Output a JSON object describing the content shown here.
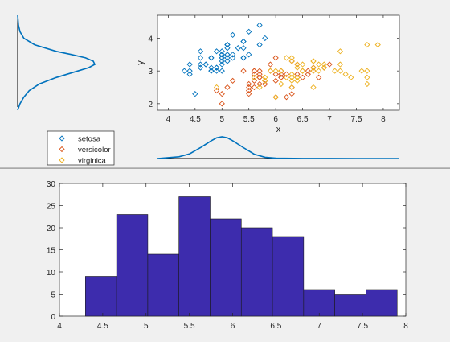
{
  "colors": {
    "setosa": "#0072bd",
    "versicolor": "#d95319",
    "virginica": "#edb120",
    "bar_fill": "#3d2cad",
    "curve": "#0072bd"
  },
  "chart_data": [
    {
      "type": "scatter",
      "xlabel": "x",
      "ylabel": "y",
      "xlim": [
        3.8,
        8.3
      ],
      "ylim": [
        1.8,
        4.7
      ],
      "xticks": [
        "4",
        "4.5",
        "5",
        "5.5",
        "6",
        "6.5",
        "7",
        "7.5",
        "8"
      ],
      "yticks": [
        "2",
        "3",
        "4"
      ],
      "legend_position": "bottom-left, outside plot",
      "marker": "open diamond",
      "series": [
        {
          "name": "setosa",
          "points": [
            [
              5.1,
              3.5
            ],
            [
              4.9,
              3.0
            ],
            [
              4.7,
              3.2
            ],
            [
              4.6,
              3.1
            ],
            [
              5.0,
              3.6
            ],
            [
              5.4,
              3.9
            ],
            [
              4.6,
              3.4
            ],
            [
              5.0,
              3.4
            ],
            [
              4.4,
              2.9
            ],
            [
              4.9,
              3.1
            ],
            [
              5.4,
              3.7
            ],
            [
              4.8,
              3.4
            ],
            [
              4.8,
              3.0
            ],
            [
              4.3,
              3.0
            ],
            [
              5.8,
              4.0
            ],
            [
              5.7,
              4.4
            ],
            [
              5.4,
              3.9
            ],
            [
              5.1,
              3.5
            ],
            [
              5.7,
              3.8
            ],
            [
              5.1,
              3.8
            ],
            [
              5.4,
              3.4
            ],
            [
              5.1,
              3.7
            ],
            [
              4.6,
              3.6
            ],
            [
              5.1,
              3.3
            ],
            [
              4.8,
              3.4
            ],
            [
              5.0,
              3.0
            ],
            [
              5.0,
              3.4
            ],
            [
              5.2,
              3.5
            ],
            [
              5.2,
              3.4
            ],
            [
              4.7,
              3.2
            ],
            [
              4.8,
              3.1
            ],
            [
              5.4,
              3.4
            ],
            [
              5.2,
              4.1
            ],
            [
              5.5,
              4.2
            ],
            [
              4.9,
              3.1
            ],
            [
              5.0,
              3.2
            ],
            [
              5.5,
              3.5
            ],
            [
              4.9,
              3.6
            ],
            [
              4.4,
              3.0
            ],
            [
              5.1,
              3.4
            ],
            [
              5.0,
              3.5
            ],
            [
              4.5,
              2.3
            ],
            [
              4.4,
              3.2
            ],
            [
              5.0,
              3.5
            ],
            [
              5.1,
              3.8
            ],
            [
              4.8,
              3.0
            ],
            [
              5.1,
              3.8
            ],
            [
              4.6,
              3.2
            ],
            [
              5.3,
              3.7
            ],
            [
              5.0,
              3.3
            ]
          ]
        },
        {
          "name": "versicolor",
          "points": [
            [
              7.0,
              3.2
            ],
            [
              6.4,
              3.2
            ],
            [
              6.9,
              3.1
            ],
            [
              5.5,
              2.3
            ],
            [
              6.5,
              2.8
            ],
            [
              5.7,
              2.8
            ],
            [
              6.3,
              3.3
            ],
            [
              4.9,
              2.4
            ],
            [
              6.6,
              2.9
            ],
            [
              5.2,
              2.7
            ],
            [
              5.0,
              2.0
            ],
            [
              5.9,
              3.0
            ],
            [
              6.0,
              2.2
            ],
            [
              6.1,
              2.9
            ],
            [
              5.6,
              2.9
            ],
            [
              6.7,
              3.1
            ],
            [
              5.6,
              3.0
            ],
            [
              5.8,
              2.7
            ],
            [
              6.2,
              2.2
            ],
            [
              5.6,
              2.5
            ],
            [
              5.9,
              3.2
            ],
            [
              6.1,
              2.8
            ],
            [
              6.3,
              2.5
            ],
            [
              6.1,
              2.8
            ],
            [
              6.4,
              2.9
            ],
            [
              6.6,
              3.0
            ],
            [
              6.8,
              2.8
            ],
            [
              6.7,
              3.0
            ],
            [
              6.0,
              2.9
            ],
            [
              5.7,
              2.6
            ],
            [
              5.5,
              2.4
            ],
            [
              5.5,
              2.4
            ],
            [
              5.8,
              2.7
            ],
            [
              6.0,
              2.7
            ],
            [
              5.4,
              3.0
            ],
            [
              6.0,
              3.4
            ],
            [
              6.7,
              3.1
            ],
            [
              6.3,
              2.3
            ],
            [
              5.6,
              3.0
            ],
            [
              5.5,
              2.5
            ],
            [
              5.5,
              2.6
            ],
            [
              6.1,
              3.0
            ],
            [
              5.8,
              2.6
            ],
            [
              5.0,
              2.3
            ],
            [
              5.6,
              2.7
            ],
            [
              5.7,
              3.0
            ],
            [
              5.7,
              2.9
            ],
            [
              6.2,
              2.9
            ],
            [
              5.1,
              2.5
            ],
            [
              5.7,
              2.8
            ]
          ]
        },
        {
          "name": "virginica",
          "points": [
            [
              6.3,
              3.3
            ],
            [
              5.8,
              2.7
            ],
            [
              7.1,
              3.0
            ],
            [
              6.3,
              2.9
            ],
            [
              6.5,
              3.0
            ],
            [
              7.6,
              3.0
            ],
            [
              4.9,
              2.5
            ],
            [
              7.3,
              2.9
            ],
            [
              6.7,
              2.5
            ],
            [
              7.2,
              3.6
            ],
            [
              6.5,
              3.2
            ],
            [
              6.4,
              2.7
            ],
            [
              6.8,
              3.0
            ],
            [
              5.7,
              2.5
            ],
            [
              5.8,
              2.8
            ],
            [
              6.4,
              3.2
            ],
            [
              6.5,
              3.0
            ],
            [
              7.7,
              3.8
            ],
            [
              7.7,
              2.6
            ],
            [
              6.0,
              2.2
            ],
            [
              6.9,
              3.2
            ],
            [
              5.6,
              2.8
            ],
            [
              7.7,
              2.8
            ],
            [
              6.3,
              2.7
            ],
            [
              6.7,
              3.3
            ],
            [
              7.2,
              3.2
            ],
            [
              6.2,
              2.8
            ],
            [
              6.1,
              3.0
            ],
            [
              6.4,
              2.8
            ],
            [
              7.2,
              3.0
            ],
            [
              7.4,
              2.8
            ],
            [
              7.9,
              3.8
            ],
            [
              6.4,
              2.8
            ],
            [
              6.3,
              2.8
            ],
            [
              6.1,
              2.6
            ],
            [
              7.7,
              3.0
            ],
            [
              6.3,
              3.4
            ],
            [
              6.4,
              3.1
            ],
            [
              6.0,
              3.0
            ],
            [
              6.9,
              3.1
            ],
            [
              6.7,
              3.1
            ],
            [
              6.9,
              3.1
            ],
            [
              5.8,
              2.7
            ],
            [
              6.8,
              3.2
            ],
            [
              6.7,
              3.3
            ],
            [
              6.7,
              3.0
            ],
            [
              6.3,
              2.5
            ],
            [
              6.5,
              3.0
            ],
            [
              6.2,
              3.4
            ],
            [
              5.9,
              3.0
            ]
          ]
        }
      ]
    },
    {
      "type": "line",
      "description_role": "marginal density of y (vertical, left of scatter)",
      "y": [
        1.8,
        2.0,
        2.2,
        2.4,
        2.6,
        2.8,
        3.0,
        3.1,
        3.2,
        3.3,
        3.4,
        3.5,
        3.6,
        3.8,
        4.0,
        4.2,
        4.4,
        4.7
      ],
      "density": [
        0.0,
        0.03,
        0.08,
        0.15,
        0.28,
        0.5,
        0.78,
        0.92,
        1.0,
        0.98,
        0.88,
        0.7,
        0.5,
        0.22,
        0.08,
        0.03,
        0.01,
        0.0
      ]
    },
    {
      "type": "line",
      "description_role": "marginal density of x (horizontal, below scatter)",
      "x": [
        3.8,
        4.2,
        4.4,
        4.6,
        4.8,
        4.9,
        5.0,
        5.1,
        5.2,
        5.4,
        5.6,
        5.8,
        6.0,
        6.5,
        7.0,
        7.5,
        8.3
      ],
      "density": [
        0.0,
        0.08,
        0.22,
        0.5,
        0.82,
        0.95,
        1.0,
        0.95,
        0.82,
        0.5,
        0.2,
        0.06,
        0.02,
        0.005,
        0.002,
        0.001,
        0.0
      ]
    },
    {
      "type": "bar",
      "subtype": "histogram",
      "bin_edges": [
        4.3,
        4.66,
        5.02,
        5.38,
        5.74,
        6.1,
        6.46,
        6.82,
        7.18,
        7.54,
        7.9
      ],
      "values": [
        9,
        23,
        14,
        27,
        22,
        20,
        18,
        6,
        5,
        6
      ],
      "xlim": [
        4,
        8
      ],
      "ylim": [
        0,
        30
      ],
      "xticks": [
        "4",
        "4.5",
        "5",
        "5.5",
        "6",
        "6.5",
        "7",
        "7.5",
        "8"
      ],
      "yticks": [
        "0",
        "5",
        "10",
        "15",
        "20",
        "25",
        "30"
      ]
    }
  ]
}
